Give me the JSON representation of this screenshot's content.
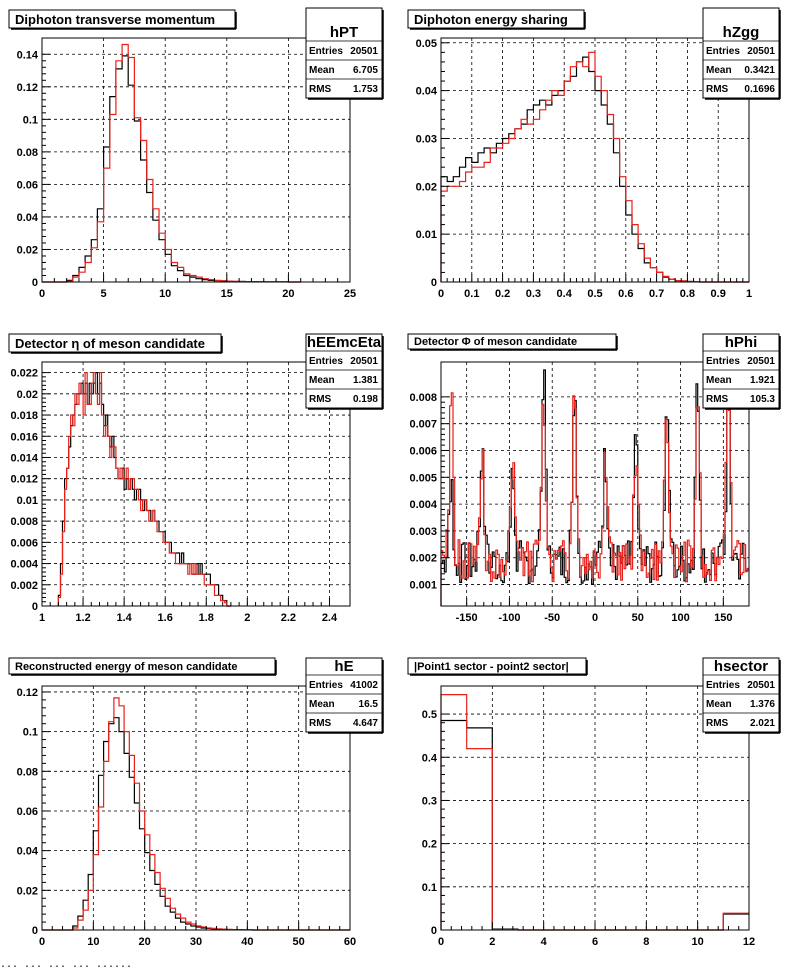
{
  "colors": {
    "black": "#000000",
    "red": "#e8211a",
    "grid": "#000000",
    "box": "#000000"
  },
  "footer_text": "... ... ... ... ......",
  "chart_data": [
    {
      "type": "histogram",
      "title": "Diphoton transverse momentum",
      "stats": {
        "name": "hPT",
        "rows": [
          {
            "label": "Entries",
            "value": "20501"
          },
          {
            "label": "Mean",
            "value": "6.705"
          },
          {
            "label": "RMS",
            "value": "1.753"
          }
        ]
      },
      "xlim": [
        0,
        25
      ],
      "ylim": [
        0,
        0.15
      ],
      "xticks": [
        0,
        5,
        10,
        15,
        20,
        25
      ],
      "xticklabels": [
        "0",
        "5",
        "10",
        "15",
        "20",
        "25"
      ],
      "yticks": [
        0,
        0.02,
        0.04,
        0.06,
        0.08,
        0.1,
        0.12,
        0.14
      ],
      "yticklabels": [
        "0",
        "0.02",
        "0.04",
        "0.06",
        "0.08",
        "0.1",
        "0.12",
        "0.14"
      ],
      "grid": true,
      "series": [
        {
          "color": "black",
          "bin_width": 0.5,
          "x0": 0,
          "values": [
            0,
            0,
            0,
            0,
            0.001,
            0.004,
            0.009,
            0.016,
            0.026,
            0.045,
            0.083,
            0.114,
            0.131,
            0.139,
            0.121,
            0.099,
            0.075,
            0.055,
            0.038,
            0.026,
            0.017,
            0.01,
            0.007,
            0.004,
            0.003,
            0.002,
            0.0015,
            0.001,
            0.0008,
            0.0006,
            0.0004,
            0.0003,
            0.0003,
            0.0002,
            0.0002,
            0.0001,
            0.0001,
            0.0001,
            0.0001,
            0.0001,
            0,
            0
          ]
        },
        {
          "color": "red",
          "bin_width": 0.5,
          "x0": 0,
          "values": [
            0,
            0,
            0,
            0,
            0.0005,
            0.003,
            0.006,
            0.012,
            0.021,
            0.037,
            0.07,
            0.103,
            0.136,
            0.146,
            0.138,
            0.101,
            0.087,
            0.063,
            0.045,
            0.03,
            0.02,
            0.012,
            0.009,
            0.005,
            0.004,
            0.003,
            0.002,
            0.0015,
            0.001,
            0.0008,
            0.0005,
            0.0004,
            0.0003,
            0.0002,
            0.0002,
            0.0002,
            0.0001,
            0.0001,
            0.0001,
            0.0001,
            0,
            0
          ]
        }
      ]
    },
    {
      "type": "histogram",
      "title": "Diphoton energy sharing",
      "stats": {
        "name": "hZgg",
        "rows": [
          {
            "label": "Entries",
            "value": "20501"
          },
          {
            "label": "Mean",
            "value": "0.3421"
          },
          {
            "label": "RMS",
            "value": "0.1696"
          }
        ]
      },
      "xlim": [
        0,
        1
      ],
      "ylim": [
        0,
        0.051
      ],
      "xticks": [
        0,
        0.1,
        0.2,
        0.3,
        0.4,
        0.5,
        0.6,
        0.7,
        0.8,
        0.9,
        1
      ],
      "xticklabels": [
        "0",
        "0.1",
        "0.2",
        "0.3",
        "0.4",
        "0.5",
        "0.6",
        "0.7",
        "0.8",
        "0.9",
        "1"
      ],
      "yticks": [
        0,
        0.01,
        0.02,
        0.03,
        0.04,
        0.05
      ],
      "yticklabels": [
        "0",
        "0.01",
        "0.02",
        "0.03",
        "0.04",
        "0.05"
      ],
      "grid": true,
      "series": [
        {
          "color": "black",
          "bin_width": 0.02,
          "x0": 0,
          "values": [
            0.022,
            0.021,
            0.022,
            0.024,
            0.026,
            0.025,
            0.027,
            0.028,
            0.027,
            0.029,
            0.03,
            0.031,
            0.032,
            0.033,
            0.036,
            0.037,
            0.038,
            0.037,
            0.039,
            0.04,
            0.042,
            0.043,
            0.046,
            0.047,
            0.044,
            0.04,
            0.037,
            0.033,
            0.027,
            0.02,
            0.014,
            0.01,
            0.007,
            0.004,
            0.003,
            0.002,
            0.001,
            0.0006,
            0.0003,
            0.0002,
            0.0001,
            5e-05,
            0,
            0,
            0,
            0,
            0,
            0,
            0,
            0
          ]
        },
        {
          "color": "red",
          "bin_width": 0.02,
          "x0": 0,
          "values": [
            0.019,
            0.02,
            0.02,
            0.021,
            0.023,
            0.024,
            0.024,
            0.025,
            0.028,
            0.028,
            0.029,
            0.03,
            0.032,
            0.034,
            0.033,
            0.034,
            0.036,
            0.038,
            0.04,
            0.039,
            0.042,
            0.045,
            0.046,
            0.045,
            0.048,
            0.043,
            0.04,
            0.035,
            0.03,
            0.022,
            0.017,
            0.012,
            0.008,
            0.005,
            0.003,
            0.002,
            0.0012,
            0.0006,
            0.0003,
            0.0002,
            0.0001,
            5e-05,
            0,
            0,
            0,
            0,
            0,
            0,
            0,
            0
          ]
        }
      ]
    },
    {
      "type": "histogram",
      "title": "Detector η of meson candidate",
      "stats": {
        "name": "hEEmcEta",
        "rows": [
          {
            "label": "Entries",
            "value": "20501"
          },
          {
            "label": "Mean",
            "value": "1.381"
          },
          {
            "label": "RMS",
            "value": "0.198"
          }
        ]
      },
      "xlim": [
        1.0,
        2.5
      ],
      "ylim": [
        0,
        0.023
      ],
      "xticks": [
        1.0,
        1.2,
        1.4,
        1.6,
        1.8,
        2.0,
        2.2,
        2.4
      ],
      "xticklabels": [
        "1",
        "1.2",
        "1.4",
        "1.6",
        "1.8",
        "2",
        "2.2",
        "2.4"
      ],
      "yticks": [
        0,
        0.002,
        0.004,
        0.006,
        0.008,
        0.01,
        0.012,
        0.014,
        0.016,
        0.018,
        0.02,
        0.022
      ],
      "yticklabels": [
        "0",
        "0.002",
        "0.004",
        "0.006",
        "0.008",
        "0.01",
        "0.012",
        "0.014",
        "0.016",
        "0.018",
        "0.02",
        "0.022"
      ],
      "grid": true,
      "series": [
        {
          "color": "black",
          "bin_width": 0.01,
          "x0": 1.08,
          "values": [
            0.001,
            0.004,
            0.008,
            0.012,
            0.013,
            0.015,
            0.017,
            0.018,
            0.019,
            0.02,
            0.02,
            0.021,
            0.02,
            0.021,
            0.019,
            0.021,
            0.02,
            0.021,
            0.022,
            0.02,
            0.021,
            0.019,
            0.017,
            0.018,
            0.016,
            0.015,
            0.016,
            0.014,
            0.013,
            0.012,
            0.012,
            0.013,
            0.011,
            0.012,
            0.011,
            0.012,
            0.011,
            0.01,
            0.011,
            0.011,
            0.01,
            0.009,
            0.01,
            0.009,
            0.009,
            0.008,
            0.009,
            0.008,
            0.008,
            0.007,
            0.007,
            0.007,
            0.006,
            0.006,
            0.006,
            0.005,
            0.005,
            0.005,
            0.005,
            0.004,
            0.005,
            0.004,
            0.004,
            0.004,
            0.004,
            0.003,
            0.003,
            0.004,
            0.003,
            0.004,
            0.003,
            0.003,
            0.003,
            0.003,
            0.002,
            0.002,
            0.002,
            0.002,
            0.001,
            0.001,
            0.0005,
            0.0005,
            0,
            0
          ]
        },
        {
          "color": "red",
          "bin_width": 0.01,
          "x0": 1.08,
          "values": [
            0.0008,
            0.003,
            0.007,
            0.011,
            0.013,
            0.016,
            0.018,
            0.017,
            0.02,
            0.019,
            0.021,
            0.02,
            0.018,
            0.022,
            0.019,
            0.019,
            0.021,
            0.022,
            0.02,
            0.019,
            0.022,
            0.018,
            0.016,
            0.017,
            0.016,
            0.014,
            0.015,
            0.015,
            0.013,
            0.012,
            0.013,
            0.012,
            0.012,
            0.013,
            0.011,
            0.012,
            0.012,
            0.011,
            0.011,
            0.01,
            0.009,
            0.01,
            0.01,
            0.009,
            0.008,
            0.008,
            0.009,
            0.008,
            0.007,
            0.007,
            0.007,
            0.006,
            0.006,
            0.006,
            0.005,
            0.005,
            0.005,
            0.004,
            0.004,
            0.004,
            0.004,
            0.004,
            0.004,
            0.003,
            0.004,
            0.003,
            0.004,
            0.003,
            0.003,
            0.003,
            0.003,
            0.002,
            0.002,
            0.002,
            0.002,
            0.002,
            0.001,
            0.001,
            0.001,
            0.0005,
            0.0005,
            0.0003,
            0,
            0
          ]
        }
      ]
    },
    {
      "type": "histogram",
      "title": "Detector Φ of meson candidate",
      "stats": {
        "name": "hPhi",
        "rows": [
          {
            "label": "Entries",
            "value": "20501"
          },
          {
            "label": "Mean",
            "value": "1.921"
          },
          {
            "label": "RMS",
            "value": "105.3"
          }
        ]
      },
      "xlim": [
        -180,
        180
      ],
      "ylim": [
        0.0002,
        0.0093
      ],
      "xticks": [
        -150,
        -100,
        -50,
        0,
        50,
        100,
        150
      ],
      "xticklabels": [
        "-150",
        "-100",
        "-50",
        "0",
        "50",
        "100",
        "150"
      ],
      "yticks": [
        0.001,
        0.002,
        0.003,
        0.004,
        0.005,
        0.006,
        0.007,
        0.008
      ],
      "yticklabels": [
        "0.001",
        "0.002",
        "0.003",
        "0.004",
        "0.005",
        "0.006",
        "0.007",
        "0.008"
      ],
      "grid": true,
      "series": [
        {
          "color": "black",
          "bin_width": 2,
          "x0": -180,
          "peaks": [
            -168,
            -132,
            -96,
            -60,
            -24,
            12,
            48,
            84,
            120,
            156
          ],
          "peak_heights": [
            0.0043,
            0.0058,
            0.0048,
            0.0086,
            0.0085,
            0.0058,
            0.0058,
            0.0078,
            0.0085,
            0.0077
          ],
          "base": 0.0018,
          "seed": 7
        },
        {
          "color": "red",
          "bin_width": 2,
          "x0": -180,
          "peaks": [
            -168,
            -132,
            -96,
            -60,
            -24,
            12,
            48,
            84,
            120,
            156
          ],
          "peak_heights": [
            0.0081,
            0.0055,
            0.0053,
            0.0078,
            0.0084,
            0.0061,
            0.0058,
            0.0068,
            0.008,
            0.0083
          ],
          "base": 0.0019,
          "seed": 13
        }
      ]
    },
    {
      "type": "histogram",
      "title": "Reconstructed energy of meson candidate",
      "stats": {
        "name": "hE",
        "rows": [
          {
            "label": "Entries",
            "value": "41002"
          },
          {
            "label": "Mean",
            "value": "16.5"
          },
          {
            "label": "RMS",
            "value": "4.647"
          }
        ]
      },
      "xlim": [
        0,
        60
      ],
      "ylim": [
        0,
        0.123
      ],
      "xticks": [
        0,
        10,
        20,
        30,
        40,
        50,
        60
      ],
      "xticklabels": [
        "0",
        "10",
        "20",
        "30",
        "40",
        "50",
        "60"
      ],
      "yticks": [
        0,
        0.02,
        0.04,
        0.06,
        0.08,
        0.1,
        0.12
      ],
      "yticklabels": [
        "0",
        "0.02",
        "0.04",
        "0.06",
        "0.08",
        "0.1",
        "0.12"
      ],
      "grid": true,
      "series": [
        {
          "color": "black",
          "bin_width": 1,
          "x0": 0,
          "values": [
            0,
            0,
            0,
            0,
            0,
            0,
            0.002,
            0.007,
            0.015,
            0.028,
            0.05,
            0.078,
            0.095,
            0.104,
            0.107,
            0.1,
            0.089,
            0.077,
            0.064,
            0.051,
            0.039,
            0.03,
            0.023,
            0.017,
            0.012,
            0.009,
            0.006,
            0.004,
            0.003,
            0.002,
            0.0015,
            0.001,
            0.0008,
            0.0006,
            0.0004,
            0.0003,
            0.0002,
            0.0002,
            0.0001,
            0.0001,
            0.0001,
            0,
            0,
            0,
            0,
            0,
            0,
            0,
            0,
            0,
            0,
            0,
            0,
            0,
            0,
            0,
            0,
            0,
            0,
            0
          ]
        },
        {
          "color": "red",
          "bin_width": 1,
          "x0": 0,
          "values": [
            0,
            0,
            0,
            0,
            0,
            0,
            0.001,
            0.005,
            0.01,
            0.02,
            0.038,
            0.062,
            0.085,
            0.105,
            0.117,
            0.113,
            0.1,
            0.088,
            0.074,
            0.06,
            0.048,
            0.038,
            0.029,
            0.021,
            0.016,
            0.011,
            0.008,
            0.006,
            0.004,
            0.003,
            0.002,
            0.0015,
            0.001,
            0.0008,
            0.0006,
            0.0004,
            0.0003,
            0.0002,
            0.0002,
            0.0001,
            0.0001,
            0,
            0,
            0,
            0,
            0,
            0,
            0,
            0,
            0,
            0,
            0,
            0,
            0,
            0,
            0,
            0,
            0,
            0,
            0
          ]
        }
      ]
    },
    {
      "type": "histogram",
      "title": "|Point1 sector - point2 sector|",
      "stats": {
        "name": "hsector",
        "rows": [
          {
            "label": "Entries",
            "value": "20501"
          },
          {
            "label": "Mean",
            "value": "1.376"
          },
          {
            "label": "RMS",
            "value": "2.021"
          }
        ]
      },
      "xlim": [
        0,
        12
      ],
      "ylim": [
        0,
        0.565
      ],
      "xticks": [
        0,
        2,
        4,
        6,
        8,
        10,
        12
      ],
      "xticklabels": [
        "0",
        "2",
        "4",
        "6",
        "8",
        "10",
        "12"
      ],
      "yticks": [
        0,
        0.1,
        0.2,
        0.3,
        0.4,
        0.5
      ],
      "yticklabels": [
        "0",
        "0.1",
        "0.2",
        "0.3",
        "0.4",
        "0.5"
      ],
      "grid": true,
      "series": [
        {
          "color": "black",
          "bin_width": 1,
          "x0": 0,
          "values": [
            0.485,
            0.468,
            0.002,
            0,
            0,
            0,
            0,
            0,
            0,
            0,
            0,
            0.037
          ]
        },
        {
          "color": "red",
          "bin_width": 1,
          "x0": 0,
          "values": [
            0.545,
            0.42,
            0.001,
            0,
            0,
            0,
            0,
            0,
            0,
            0,
            0,
            0.039
          ]
        }
      ]
    }
  ]
}
